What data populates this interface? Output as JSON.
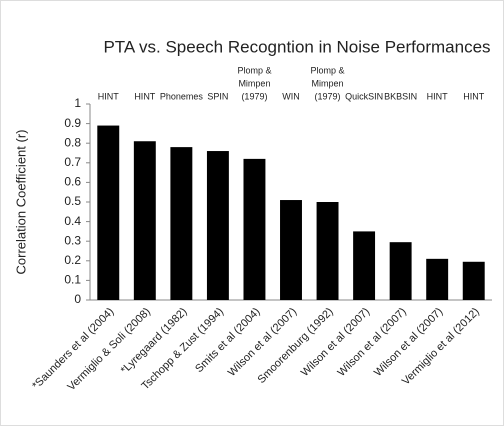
{
  "chart_data": {
    "type": "bar",
    "title": "PTA vs. Speech Recogntion in Noise Performances",
    "y_label": "Correlation Coefficient (r)",
    "categories": [
      "*Saunders et al (2004)",
      "Vermiglio & Soli (2008)",
      "*Lyregaard (1982)",
      "Tschopp & Zust (1994)",
      "Smits et al (2004)",
      "Wilson et al (2007)",
      "Smoorenburg (1992)",
      "Wilson et al (2007)",
      "Wilson et al (2007)",
      "Wilson et al (2007)",
      "Vermiglio et al (2012)"
    ],
    "annotations": [
      [
        "HINT"
      ],
      [
        "HINT"
      ],
      [
        "Phonemes"
      ],
      [
        "SPIN"
      ],
      [
        "Plomp &",
        "Mimpen",
        "(1979)"
      ],
      [
        "WIN"
      ],
      [
        "Plomp &",
        "Mimpen",
        "(1979)"
      ],
      [
        "QuickSIN"
      ],
      [
        "BKBSIN"
      ],
      [
        "HINT"
      ],
      [
        "HINT"
      ]
    ],
    "values": [
      0.89,
      0.81,
      0.78,
      0.76,
      0.72,
      0.51,
      0.5,
      0.35,
      0.295,
      0.21,
      0.195
    ],
    "color": "#000000",
    "ylim": [
      0,
      1
    ],
    "yticks": [
      0,
      0.1,
      0.2,
      0.3,
      0.4,
      0.5,
      0.6,
      0.7,
      0.8,
      0.9,
      1
    ],
    "grid": false
  }
}
